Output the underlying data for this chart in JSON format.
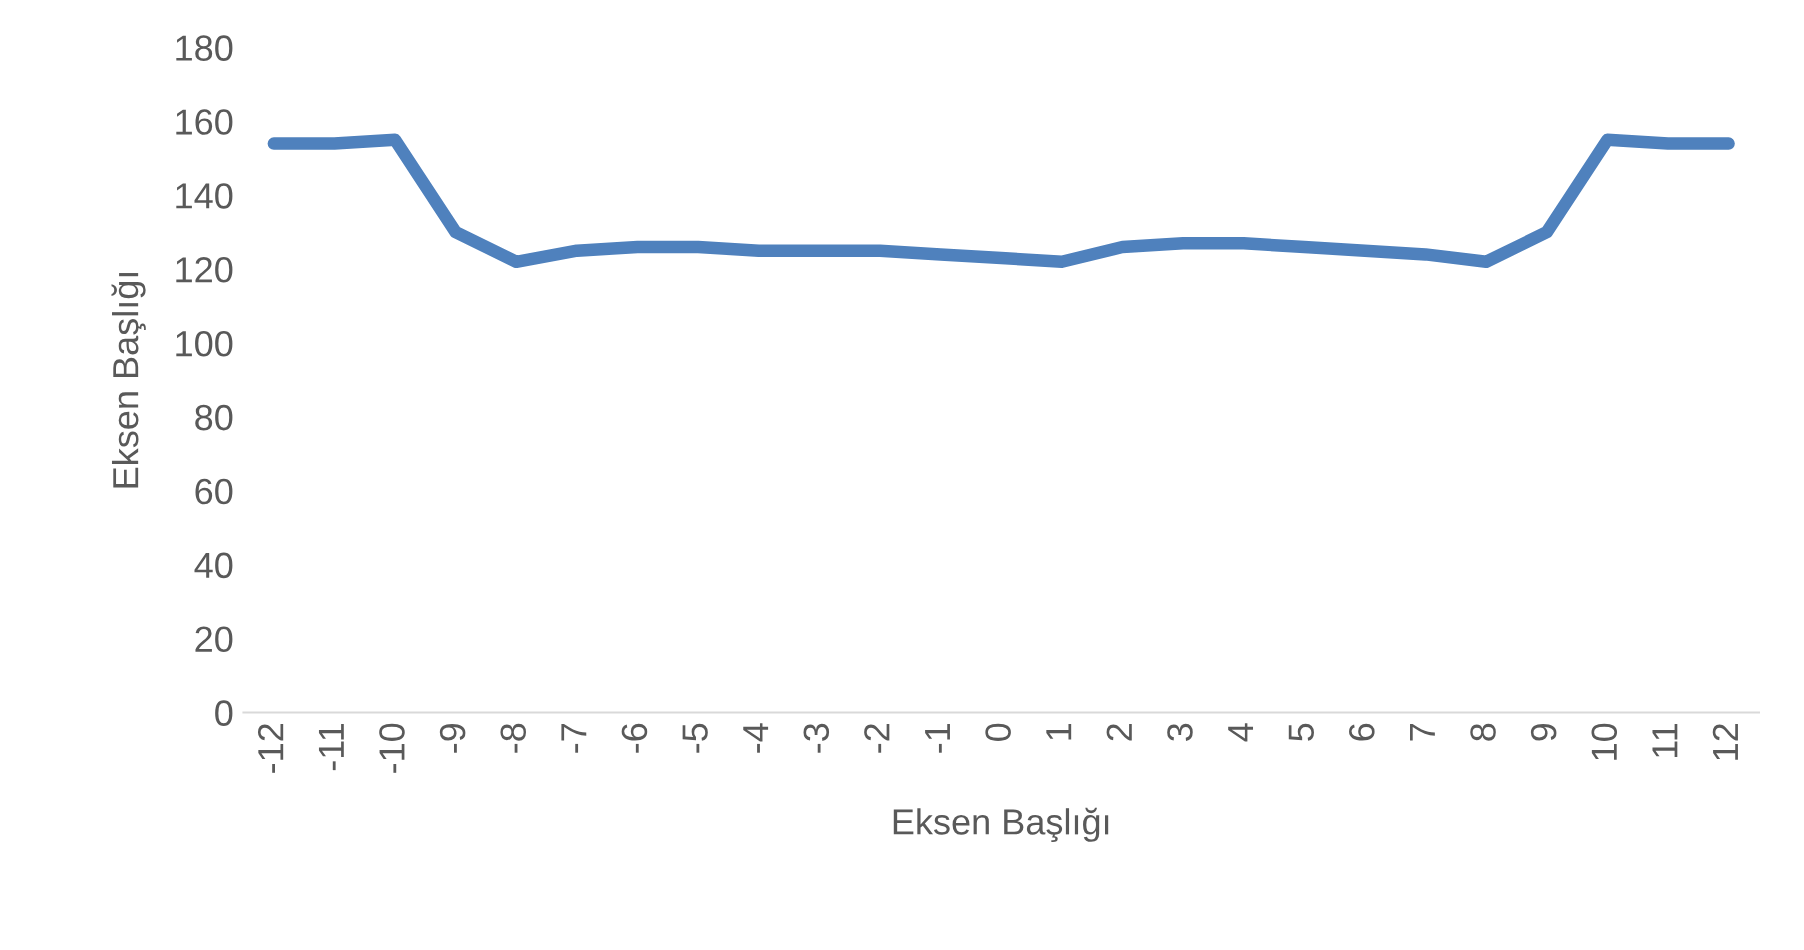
{
  "chart_data": {
    "type": "line",
    "xlabel": "Eksen Başlığı",
    "ylabel": "Eksen Başlığı",
    "categories": [
      "-12",
      "-11",
      "-10",
      "-9",
      "-8",
      "-7",
      "-6",
      "-5",
      "-4",
      "-3",
      "-2",
      "-1",
      "0",
      "1",
      "2",
      "3",
      "4",
      "5",
      "6",
      "7",
      "8",
      "9",
      "10",
      "11",
      "12"
    ],
    "series": [
      {
        "color": "#4f81bd",
        "values": [
          154,
          154,
          155,
          130,
          122,
          125,
          126,
          126,
          125,
          125,
          125,
          124,
          123,
          122,
          126,
          127,
          127,
          126,
          125,
          124,
          122,
          130,
          155,
          154,
          154
        ]
      }
    ],
    "ylim": [
      0,
      180
    ],
    "yticks": [
      0,
      20,
      40,
      60,
      80,
      100,
      120,
      140,
      160,
      180
    ],
    "grid": false,
    "line_style": "solid",
    "marker": "none"
  }
}
